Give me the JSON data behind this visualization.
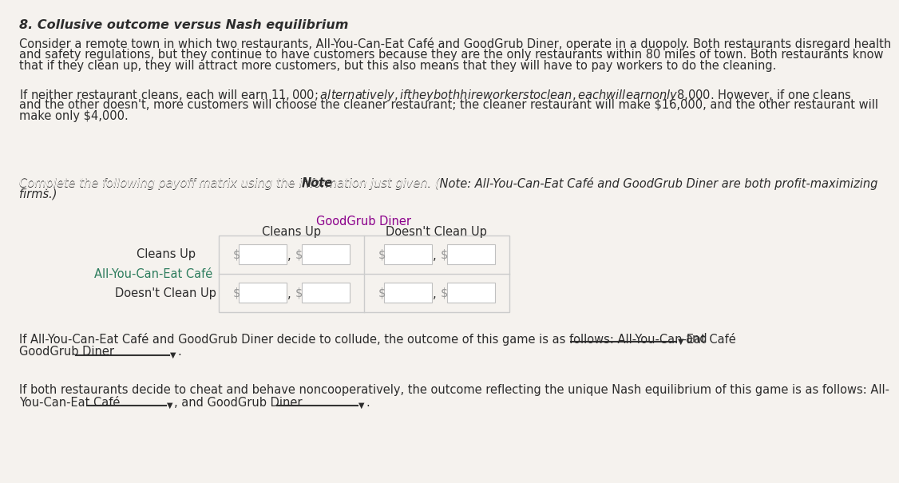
{
  "title": "8. Collusive outcome versus Nash equilibrium",
  "bg_color": "#f5f2ee",
  "para1_normal": "Consider a remote town in which two restaurants, All-You-Can-Eat Café and GoodGrub Diner, operate in a duopoly. Both restaurants disregard health\nand safety regulations, but they continue to have customers because they are the only restaurants within 80 miles of town. Both restaurants know\nthat if they clean up, they will attract more customers, but this also means that they will have to pay workers to do the cleaning.",
  "para2_normal": "If neither restaurant cleans, each will earn $11,000; alternatively, if they both hire workers to clean, each will earn only $8,000. However, if one cleans\nand the other doesn't, more customers will choose the cleaner restaurant; the cleaner restaurant will make $16,000, and the other restaurant will\nmake only $4,000.",
  "para3_italic": "Complete the following payoff matrix using the information just given. (",
  "para3_bold": "Note",
  "para3_rest": ": All-You-Can-Eat Café and GoodGrub Diner are both profit-maximizing\nfirms.)",
  "goodgrub_label": "GoodGrub Diner",
  "goodgrub_color": "#8b008b",
  "alleat_label": "All-You-Can-Eat Café",
  "alleat_color": "#2e7d5e",
  "col1_label": "Cleans Up",
  "col2_label": "Doesn't Clean Up",
  "row1_label": "Cleans Up",
  "row2_label": "Doesn't Clean Up",
  "text_color": "#2c2c2c",
  "box_fill": "#ffffff",
  "box_border": "#c0c0c0",
  "dollar_color": "#999999",
  "line_color": "#333333",
  "matrix_outer_border": "#cccccc"
}
